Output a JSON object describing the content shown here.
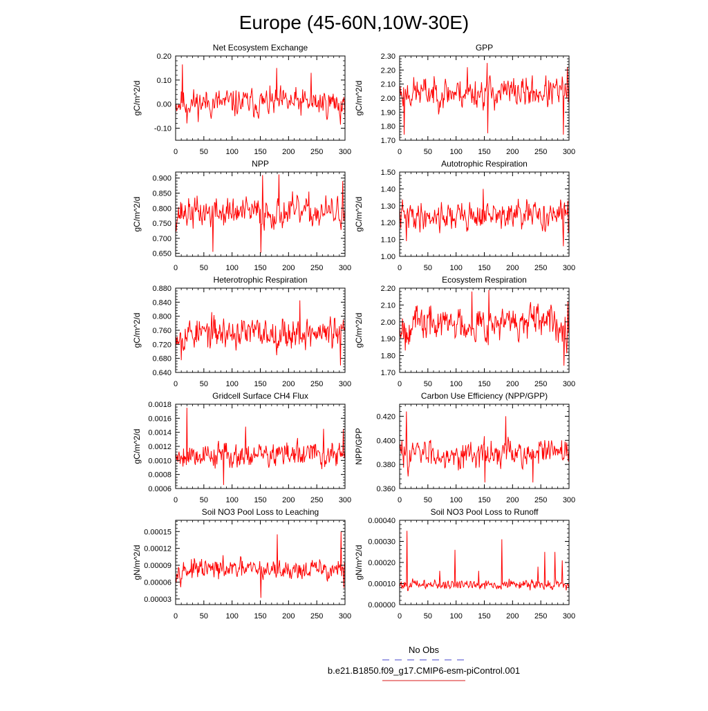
{
  "figure": {
    "title": "Europe (45-60N,10W-30E)",
    "legend": {
      "obs_label": "No Obs",
      "model_label": "b.e21.B1850.f09_g17.CMIP6-esm-piControl.001",
      "obs_color": "#6a6ad8",
      "model_color": "#e04848"
    }
  },
  "chart_data": [
    {
      "type": "line",
      "title": "Net Ecosystem Exchange",
      "ylabel": "gC/m^2/d",
      "xlim": [
        0,
        300
      ],
      "ylim": [
        -0.15,
        0.2
      ],
      "yticks": [
        "-0.10",
        "0.00",
        "0.10",
        "0.20"
      ],
      "ytick_values": [
        -0.1,
        0.0,
        0.1,
        0.2
      ],
      "xticks": [
        "0",
        "50",
        "100",
        "150",
        "200",
        "250",
        "300"
      ],
      "series": [
        {
          "name": "b.e21.B1850.f09_g17.CMIP6-esm-piControl.001",
          "color": "#ff0000",
          "mean": 0.005,
          "amp": 0.045,
          "seed": 11,
          "spikes": [
            [
              12,
              0.165
            ],
            [
              20,
              -0.08
            ],
            [
              179,
              0.15
            ],
            [
              240,
              0.13
            ],
            [
              292,
              -0.085
            ]
          ]
        }
      ]
    },
    {
      "type": "line",
      "title": "GPP",
      "ylabel": "gC/m^2/d",
      "xlim": [
        0,
        300
      ],
      "ylim": [
        1.7,
        2.3
      ],
      "yticks": [
        "1.70",
        "1.80",
        "1.90",
        "2.00",
        "2.10",
        "2.20",
        "2.30"
      ],
      "ytick_values": [
        1.7,
        1.8,
        1.9,
        2.0,
        2.1,
        2.2,
        2.3
      ],
      "xticks": [
        "0",
        "50",
        "100",
        "150",
        "200",
        "250",
        "300"
      ],
      "series": [
        {
          "name": "b.e21.B1850.f09_g17.CMIP6-esm-piControl.001",
          "color": "#ff0000",
          "mean": 2.04,
          "amp": 0.085,
          "seed": 23,
          "spikes": [
            [
              8,
              1.74
            ],
            [
              120,
              2.22
            ],
            [
              155,
              2.25
            ],
            [
              156,
              1.75
            ],
            [
              290,
              1.74
            ],
            [
              297,
              2.22
            ]
          ]
        }
      ]
    },
    {
      "type": "line",
      "title": "NPP",
      "ylabel": "gC/m^2/d",
      "xlim": [
        0,
        300
      ],
      "ylim": [
        0.64,
        0.92
      ],
      "yticks": [
        "0.650",
        "0.700",
        "0.750",
        "0.800",
        "0.850",
        "0.900"
      ],
      "ytick_values": [
        0.65,
        0.7,
        0.75,
        0.8,
        0.85,
        0.9
      ],
      "xticks": [
        "0",
        "50",
        "100",
        "150",
        "200",
        "250",
        "300"
      ],
      "series": [
        {
          "name": "b.e21.B1850.f09_g17.CMIP6-esm-piControl.001",
          "color": "#ff0000",
          "mean": 0.785,
          "amp": 0.04,
          "seed": 37,
          "spikes": [
            [
              66,
              0.655
            ],
            [
              151,
              0.652
            ],
            [
              154,
              0.91
            ],
            [
              183,
              0.912
            ],
            [
              296,
              0.89
            ]
          ]
        }
      ]
    },
    {
      "type": "line",
      "title": "Autotrophic Respiration",
      "ylabel": "gC/m^2/d",
      "xlim": [
        0,
        300
      ],
      "ylim": [
        1.0,
        1.5
      ],
      "yticks": [
        "1.00",
        "1.10",
        "1.20",
        "1.30",
        "1.40",
        "1.50"
      ],
      "ytick_values": [
        1.0,
        1.1,
        1.2,
        1.3,
        1.4,
        1.5
      ],
      "xticks": [
        "0",
        "50",
        "100",
        "150",
        "200",
        "250",
        "300"
      ],
      "series": [
        {
          "name": "b.e21.B1850.f09_g17.CMIP6-esm-piControl.001",
          "color": "#ff0000",
          "mean": 1.24,
          "amp": 0.065,
          "seed": 41,
          "spikes": [
            [
              12,
              1.09
            ],
            [
              148,
              1.4
            ],
            [
              290,
              1.06
            ],
            [
              298,
              1.33
            ]
          ]
        }
      ]
    },
    {
      "type": "line",
      "title": "Heterotrophic Respiration",
      "ylabel": "gC/m^2/d",
      "xlim": [
        0,
        300
      ],
      "ylim": [
        0.64,
        0.88
      ],
      "yticks": [
        "0.640",
        "0.680",
        "0.720",
        "0.760",
        "0.800",
        "0.840",
        "0.880"
      ],
      "ytick_values": [
        0.64,
        0.68,
        0.72,
        0.76,
        0.8,
        0.84,
        0.88
      ],
      "xticks": [
        "0",
        "50",
        "100",
        "150",
        "200",
        "250",
        "300"
      ],
      "series": [
        {
          "name": "b.e21.B1850.f09_g17.CMIP6-esm-piControl.001",
          "color": "#ff0000",
          "mean": 0.752,
          "amp": 0.035,
          "seed": 53,
          "spikes": [
            [
              10,
              0.675
            ],
            [
              220,
              0.845
            ],
            [
              292,
              0.66
            ],
            [
              297,
              0.79
            ]
          ]
        }
      ]
    },
    {
      "type": "line",
      "title": "Ecosystem Respiration",
      "ylabel": "gC/m^2/d",
      "xlim": [
        0,
        300
      ],
      "ylim": [
        1.7,
        2.2
      ],
      "yticks": [
        "1.70",
        "1.80",
        "1.90",
        "2.00",
        "2.10",
        "2.20"
      ],
      "ytick_values": [
        1.7,
        1.8,
        1.9,
        2.0,
        2.1,
        2.2
      ],
      "xticks": [
        "0",
        "50",
        "100",
        "150",
        "200",
        "250",
        "300"
      ],
      "series": [
        {
          "name": "b.e21.B1850.f09_g17.CMIP6-esm-piControl.001",
          "color": "#ff0000",
          "mean": 1.99,
          "amp": 0.08,
          "seed": 67,
          "spikes": [
            [
              10,
              1.83
            ],
            [
              128,
              2.18
            ],
            [
              158,
              2.19
            ],
            [
              291,
              1.74
            ],
            [
              298,
              2.12
            ]
          ]
        }
      ]
    },
    {
      "type": "line",
      "title": "Gridcell Surface CH4 Flux",
      "ylabel": "gC/m^2/d",
      "xlim": [
        0,
        300
      ],
      "ylim": [
        0.0006,
        0.0018
      ],
      "yticks": [
        "0.0006",
        "0.0008",
        "0.0010",
        "0.0012",
        "0.0014",
        "0.0016",
        "0.0018"
      ],
      "ytick_values": [
        0.0006,
        0.0008,
        0.001,
        0.0012,
        0.0014,
        0.0016,
        0.0018
      ],
      "xticks": [
        "0",
        "50",
        "100",
        "150",
        "200",
        "250",
        "300"
      ],
      "series": [
        {
          "name": "b.e21.B1850.f09_g17.CMIP6-esm-piControl.001",
          "color": "#ff0000",
          "mean": 0.00108,
          "amp": 0.00014,
          "seed": 79,
          "spikes": [
            [
              20,
              0.00175
            ],
            [
              85,
              0.00065
            ],
            [
              124,
              0.00148
            ],
            [
              262,
              0.00145
            ],
            [
              297,
              0.00145
            ]
          ]
        }
      ]
    },
    {
      "type": "line",
      "title": "Carbon Use Efficiency (NPP/GPP)",
      "ylabel": "NPP/GPP",
      "xlim": [
        0,
        300
      ],
      "ylim": [
        0.36,
        0.43
      ],
      "yticks": [
        "0.360",
        "0.380",
        "0.400",
        "0.420"
      ],
      "ytick_values": [
        0.36,
        0.38,
        0.4,
        0.42
      ],
      "xticks": [
        "0",
        "50",
        "100",
        "150",
        "200",
        "250",
        "300"
      ],
      "series": [
        {
          "name": "b.e21.B1850.f09_g17.CMIP6-esm-piControl.001",
          "color": "#ff0000",
          "mean": 0.389,
          "amp": 0.009,
          "seed": 83,
          "spikes": [
            [
              12,
              0.424
            ],
            [
              188,
              0.42
            ],
            [
              151,
              0.365
            ],
            [
              236,
              0.365
            ]
          ]
        }
      ]
    },
    {
      "type": "line",
      "title": "Soil NO3 Pool Loss to Leaching",
      "ylabel": "gN/m^2/d",
      "xlim": [
        0,
        300
      ],
      "ylim": [
        2e-05,
        0.00017
      ],
      "yticks": [
        "0.00003",
        "0.00006",
        "0.00009",
        "0.00012",
        "0.00015"
      ],
      "ytick_values": [
        3e-05,
        6e-05,
        9e-05,
        0.00012,
        0.00015
      ],
      "xticks": [
        "0",
        "50",
        "100",
        "150",
        "200",
        "250",
        "300"
      ],
      "series": [
        {
          "name": "b.e21.B1850.f09_g17.CMIP6-esm-piControl.001",
          "color": "#ff0000",
          "mean": 8.2e-05,
          "amp": 1.4e-05,
          "seed": 97,
          "spikes": [
            [
              151,
              3.2e-05
            ],
            [
              180,
              0.000145
            ],
            [
              293,
              0.00015
            ],
            [
              298,
              5e-05
            ]
          ]
        }
      ]
    },
    {
      "type": "line",
      "title": "Soil NO3 Pool Loss to Runoff",
      "ylabel": "gN/m^2/d",
      "xlim": [
        0,
        300
      ],
      "ylim": [
        0.0,
        0.0004
      ],
      "yticks": [
        "0.00000",
        "0.00010",
        "0.00020",
        "0.00030",
        "0.00040"
      ],
      "ytick_values": [
        0.0,
        0.0001,
        0.0002,
        0.0003,
        0.0004
      ],
      "xticks": [
        "0",
        "50",
        "100",
        "150",
        "200",
        "250",
        "300"
      ],
      "series": [
        {
          "name": "b.e21.B1850.f09_g17.CMIP6-esm-piControl.001",
          "color": "#ff0000",
          "mean": 9.5e-05,
          "amp": 1.8e-05,
          "seed": 101,
          "spikes": [
            [
              13,
              0.00035
            ],
            [
              71,
              0.00016
            ],
            [
              98,
              0.00026
            ],
            [
              140,
              0.00016
            ],
            [
              181,
              0.00031
            ],
            [
              245,
              0.00018
            ],
            [
              257,
              0.00025
            ],
            [
              275,
              0.00025
            ],
            [
              288,
              0.00021
            ]
          ]
        }
      ]
    }
  ]
}
